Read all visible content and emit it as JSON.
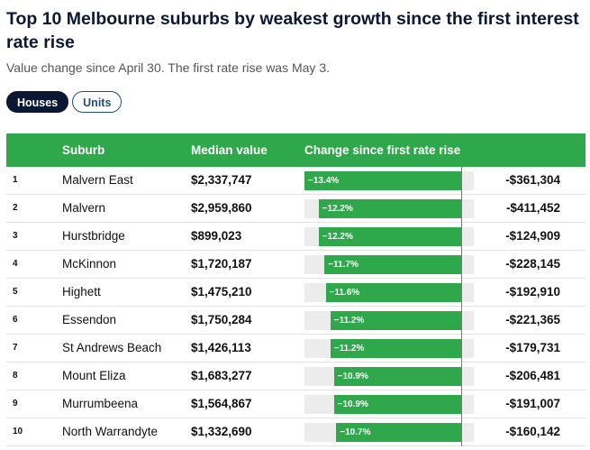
{
  "title": "Top 10 Melbourne suburbs by weakest growth since the first interest rate rise",
  "subtitle": "Value change since April 30. The first rate rise was May 3.",
  "toggles": [
    {
      "label": "Houses",
      "active": true
    },
    {
      "label": "Units",
      "active": false
    }
  ],
  "table": {
    "headers": {
      "rank": "",
      "suburb": "Suburb",
      "median": "Median value",
      "change": "Change since first rate rise",
      "amount": ""
    },
    "rows": [
      {
        "rank": "1",
        "suburb": "Malvern East",
        "median": "$2,337,747",
        "change_pct": -13.4,
        "change_label": "−13.4%",
        "amount": "-$361,304"
      },
      {
        "rank": "2",
        "suburb": "Malvern",
        "median": "$2,959,860",
        "change_pct": -12.2,
        "change_label": "−12.2%",
        "amount": "-$411,452"
      },
      {
        "rank": "3",
        "suburb": "Hurstbridge",
        "median": "$899,023",
        "change_pct": -12.2,
        "change_label": "−12.2%",
        "amount": "-$124,909"
      },
      {
        "rank": "4",
        "suburb": "McKinnon",
        "median": "$1,720,187",
        "change_pct": -11.7,
        "change_label": "−11.7%",
        "amount": "-$228,145"
      },
      {
        "rank": "5",
        "suburb": "Highett",
        "median": "$1,475,210",
        "change_pct": -11.6,
        "change_label": "−11.6%",
        "amount": "-$192,910"
      },
      {
        "rank": "6",
        "suburb": "Essendon",
        "median": "$1,750,284",
        "change_pct": -11.2,
        "change_label": "−11.2%",
        "amount": "-$221,365"
      },
      {
        "rank": "7",
        "suburb": "St Andrews Beach",
        "median": "$1,426,113",
        "change_pct": -11.2,
        "change_label": "−11.2%",
        "amount": "-$179,731"
      },
      {
        "rank": "8",
        "suburb": "Mount Eliza",
        "median": "$1,683,277",
        "change_pct": -10.9,
        "change_label": "−10.9%",
        "amount": "-$206,481"
      },
      {
        "rank": "9",
        "suburb": "Murrumbeena",
        "median": "$1,564,867",
        "change_pct": -10.9,
        "change_label": "−10.9%",
        "amount": "-$191,007"
      },
      {
        "rank": "10",
        "suburb": "North Warrandyte",
        "median": "$1,332,690",
        "change_pct": -10.7,
        "change_label": "−10.7%",
        "amount": "-$160,142"
      }
    ],
    "bar_scale_max_pct": 13.4
  },
  "colors": {
    "header_green": "#2ea84a",
    "bar_green": "#2ea84a",
    "navy": "#0b1733",
    "pill_border": "#1f4e79"
  }
}
